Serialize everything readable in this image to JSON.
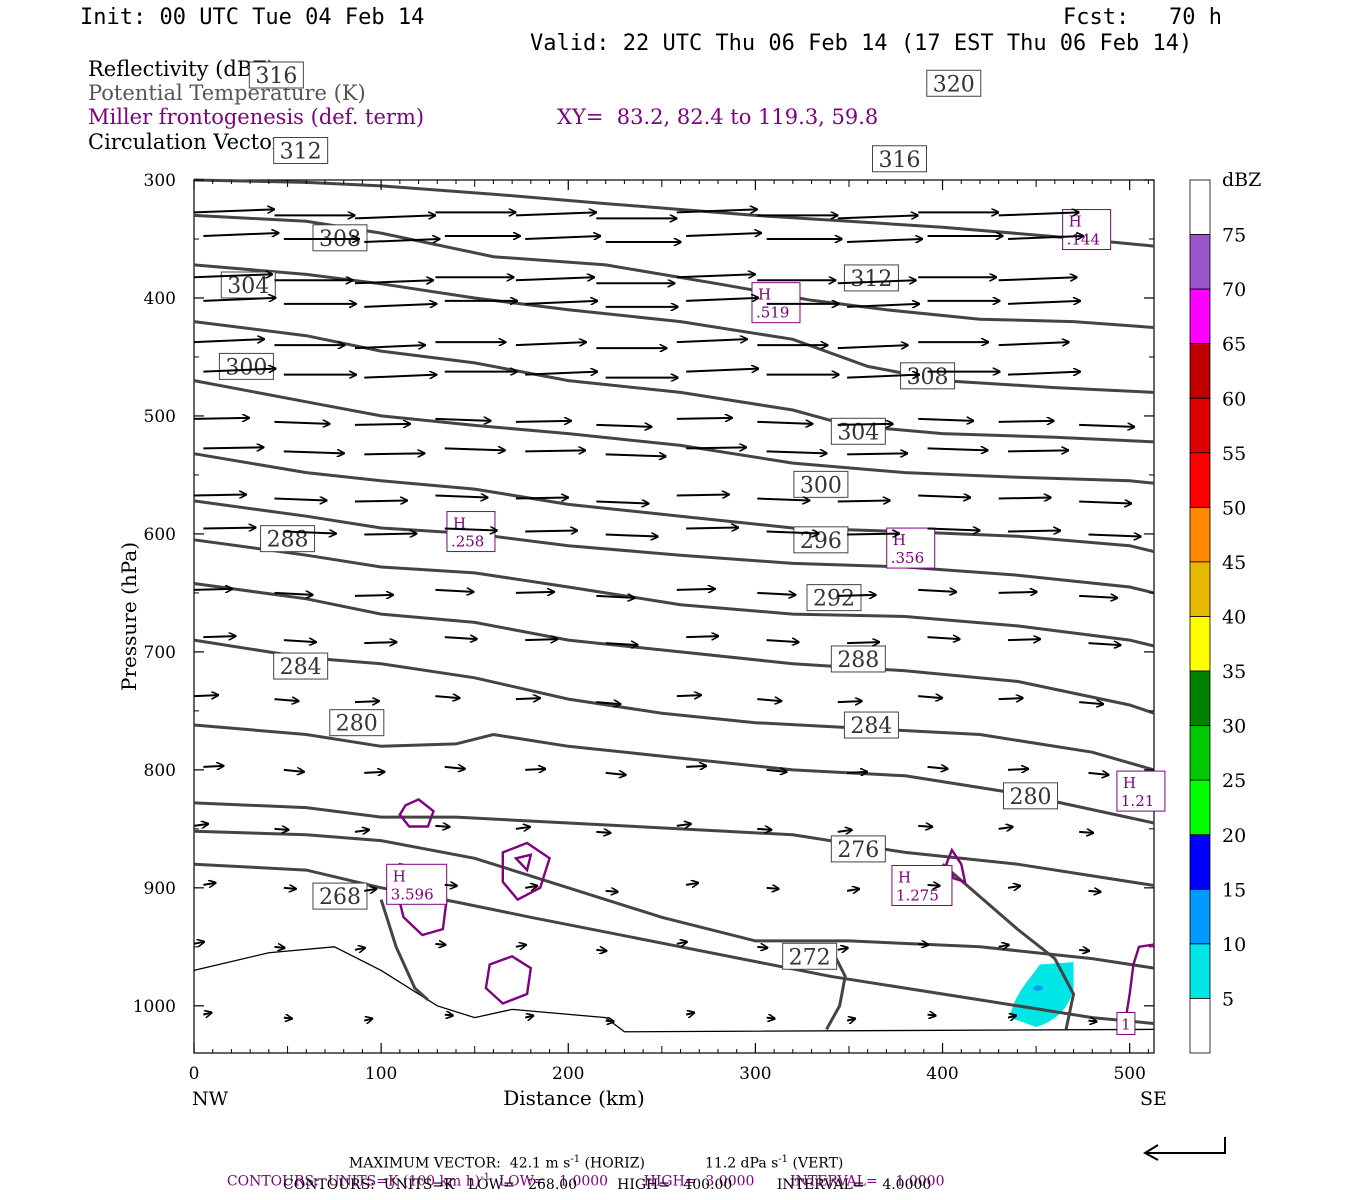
{
  "header": {
    "init": "Init: 00 UTC Tue 04 Feb 14",
    "fcst": "Fcst:   70 h",
    "valid": "Valid: 22 UTC Thu 06 Feb 14 (17 EST Thu 06 Feb 14)",
    "field1": "Reflectivity (dBZ)",
    "field2": "Potential Temperature (K)",
    "field3": "Miller frontogenesis (def. term)",
    "xy": "XY=  83.2, 82.4 to 119.3, 59.8",
    "field4": "Circulation Vectors"
  },
  "colors": {
    "theta": "#444444",
    "fronto": "#800080",
    "vector": "#000000",
    "refl_5": "#00e5e5"
  },
  "chart_data": {
    "type": "contour-cross-section",
    "xlabel": "Distance (km)",
    "ylabel": "Pressure (hPa)",
    "xlim": [
      0,
      513
    ],
    "ylim": [
      300,
      1040
    ],
    "x_ticks": [
      "0",
      "100",
      "200",
      "300",
      "400",
      "500"
    ],
    "y_ticks": [
      "300",
      "400",
      "500",
      "600",
      "700",
      "800",
      "900",
      "1000"
    ],
    "left_end": "NW",
    "right_end": "SE",
    "colorbar": {
      "unit": "dBZ",
      "levels": [
        "5",
        "10",
        "15",
        "20",
        "25",
        "30",
        "35",
        "40",
        "45",
        "50",
        "55",
        "60",
        "65",
        "70",
        "75"
      ],
      "colors": [
        "#ffffff",
        "#00e5e5",
        "#0099ff",
        "#0000ff",
        "#00ff00",
        "#00c800",
        "#008200",
        "#ffff00",
        "#e6b800",
        "#ff8800",
        "#ff0000",
        "#e00000",
        "#c00000",
        "#ff00ff",
        "#9955cc",
        "#ffffff"
      ]
    },
    "theta_contours": [
      {
        "label": "268",
        "lx": 78,
        "lp": 907,
        "x": [
          0,
          60,
          100,
          140,
          180,
          260,
          340,
          420,
          480,
          513
        ],
        "p": [
          880,
          885,
          900,
          912,
          925,
          950,
          975,
          995,
          1010,
          1015
        ]
      },
      {
        "label": "272",
        "lx": 329,
        "lp": 958,
        "x": [
          0,
          60,
          100,
          150,
          200,
          250,
          300,
          350,
          420,
          480,
          513
        ],
        "p": [
          852,
          855,
          860,
          875,
          900,
          925,
          945,
          945,
          950,
          960,
          968
        ]
      },
      {
        "label": "276",
        "lx": 355,
        "lp": 867,
        "x": [
          0,
          60,
          100,
          140,
          200,
          260,
          320,
          380,
          440,
          513
        ],
        "p": [
          828,
          832,
          840,
          840,
          845,
          850,
          855,
          870,
          880,
          898
        ]
      },
      {
        "label": "280",
        "lx": 87,
        "lp": 760,
        "x": [
          0,
          60,
          100,
          140,
          160,
          200,
          260,
          320,
          380,
          440,
          513
        ],
        "p": [
          762,
          770,
          780,
          778,
          770,
          780,
          790,
          800,
          805,
          820,
          845
        ]
      },
      {
        "label": "284",
        "lx": 57,
        "lp": 712,
        "x": [
          0,
          60,
          100,
          150,
          200,
          250,
          300,
          360,
          420,
          480,
          513
        ],
        "p": [
          690,
          705,
          710,
          722,
          740,
          752,
          760,
          765,
          770,
          785,
          800
        ]
      },
      {
        "label": "288",
        "lx": 50,
        "lp": 604,
        "x": [
          0,
          60,
          100,
          150,
          200,
          260,
          320,
          380,
          440,
          500,
          513
        ],
        "p": [
          642,
          655,
          668,
          675,
          690,
          700,
          710,
          716,
          725,
          745,
          752
        ]
      },
      {
        "label": "292",
        "lx": 342,
        "lp": 654,
        "x": [
          0,
          60,
          100,
          150,
          200,
          260,
          320,
          380,
          440,
          500,
          513
        ],
        "p": [
          605,
          618,
          628,
          633,
          645,
          660,
          668,
          670,
          678,
          690,
          695
        ]
      },
      {
        "label": "296",
        "lx": 335,
        "lp": 605,
        "x": [
          0,
          60,
          100,
          150,
          200,
          260,
          320,
          380,
          440,
          500,
          513
        ],
        "p": [
          572,
          585,
          595,
          600,
          610,
          618,
          625,
          628,
          635,
          645,
          650
        ]
      },
      {
        "label": "300",
        "lx": 28,
        "lp": 458,
        "x": [
          0,
          60,
          100,
          150,
          200,
          260,
          320,
          380,
          440,
          500,
          513
        ],
        "p": [
          532,
          548,
          555,
          562,
          575,
          585,
          595,
          598,
          602,
          610,
          615
        ]
      },
      {
        "label": "304",
        "lx": 29,
        "lp": 389,
        "x": [
          0,
          60,
          100,
          150,
          200,
          260,
          320,
          380,
          440,
          500,
          513
        ],
        "p": [
          470,
          488,
          500,
          508,
          515,
          525,
          540,
          548,
          552,
          555,
          557
        ]
      },
      {
        "label": "308",
        "lx": 78,
        "lp": 349,
        "x": [
          0,
          60,
          100,
          150,
          200,
          260,
          320,
          350,
          400,
          460,
          513
        ],
        "p": [
          420,
          432,
          445,
          455,
          470,
          480,
          495,
          508,
          515,
          518,
          522
        ]
      },
      {
        "label": "312",
        "lx": 57,
        "lp": 275,
        "x": [
          0,
          60,
          100,
          150,
          200,
          260,
          320,
          360,
          400,
          460,
          513
        ],
        "p": [
          372,
          380,
          388,
          400,
          410,
          420,
          435,
          458,
          470,
          476,
          480
        ]
      },
      {
        "label": "316",
        "lx": 44,
        "lp": 211,
        "x": [
          0,
          60,
          100,
          160,
          220,
          280,
          330,
          370,
          420,
          470,
          513
        ],
        "p": [
          330,
          335,
          345,
          365,
          372,
          388,
          402,
          410,
          418,
          420,
          425
        ]
      },
      {
        "label": "320",
        "lx": 406,
        "lp": 218,
        "x": [
          0,
          60,
          100,
          160,
          220,
          260,
          300,
          350,
          400,
          460,
          513
        ],
        "p": [
          300,
          302,
          305,
          312,
          320,
          325,
          330,
          335,
          340,
          348,
          356
        ]
      }
    ],
    "theta_labels_extra": [
      {
        "label": "312",
        "lx": 362,
        "lp": 383
      },
      {
        "label": "316",
        "lx": 377,
        "lp": 282
      },
      {
        "label": "308",
        "lx": 392,
        "lp": 466
      },
      {
        "label": "304",
        "lx": 355,
        "lp": 513
      },
      {
        "label": "300",
        "lx": 335,
        "lp": 558
      },
      {
        "label": "288",
        "lx": 355,
        "lp": 706
      },
      {
        "label": "284",
        "lx": 362,
        "lp": 762
      },
      {
        "label": "280",
        "lx": 447,
        "lp": 822
      }
    ],
    "fronto_highs": [
      {
        "h": "H",
        "v": ".144",
        "x": 477,
        "p": 342
      },
      {
        "h": "H",
        "v": ".519",
        "x": 311,
        "p": 404
      },
      {
        "h": "H",
        "v": ".258",
        "x": 148,
        "p": 598
      },
      {
        "h": "H",
        "v": ".356",
        "x": 383,
        "p": 612
      },
      {
        "h": "H",
        "v": "1.21",
        "x": 506,
        "p": 818
      },
      {
        "h": "H",
        "v": "3.596",
        "x": 119,
        "p": 897
      },
      {
        "h": "H",
        "v": "1.275",
        "x": 389,
        "p": 898
      },
      {
        "h": "",
        "v": "1",
        "x": 498,
        "p": 1015
      }
    ],
    "footer": {
      "max_vector": "MAXIMUM VECTOR:  42.1 m s",
      "max_vector_sup": "-1",
      "max_vector_h": " (HORIZ)",
      "max_vector_v": "11.2 dPa s",
      "max_vector_v_sup": "-1",
      "max_vector_vv": " (VERT)",
      "contours1_a": "CONTOURS:  UNITS=K (100 km h)",
      "contours1_sup": "-1",
      "contours1_b": "  LOW=   1.0000        HIGH=  3.0000        INTERVAL=    1.0000",
      "contours2": "CONTOURS:  UNITS=K   LOW=   268.00         HIGH=   400.00          INTERVAL=    4.0000"
    }
  }
}
